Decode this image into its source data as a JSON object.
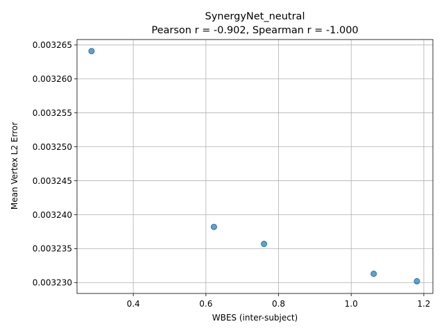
{
  "chart_data": {
    "type": "scatter",
    "title": "SynergyNet_neutral",
    "subtitle": "Pearson r = -0.902, Spearman r = -1.000",
    "xlabel": "WBES (inter-subject)",
    "ylabel": "Mean Vertex L2 Error",
    "xlim": [
      0.245,
      1.225
    ],
    "ylim": [
      0.0032284,
      0.0032658
    ],
    "xticks": [
      0.4,
      0.6,
      0.8,
      1.0,
      1.2
    ],
    "xtick_labels": [
      "0.4",
      "0.6",
      "0.8",
      "1.0",
      "1.2"
    ],
    "yticks": [
      0.00323,
      0.003235,
      0.00324,
      0.003245,
      0.00325,
      0.003255,
      0.00326,
      0.003265
    ],
    "ytick_labels": [
      "0.003230",
      "0.003235",
      "0.003240",
      "0.003245",
      "0.003250",
      "0.003255",
      "0.003260",
      "0.003265"
    ],
    "grid": true,
    "color": "#1f77b4",
    "points": [
      {
        "x": 0.285,
        "y": 0.0032641
      },
      {
        "x": 0.622,
        "y": 0.0032382
      },
      {
        "x": 0.76,
        "y": 0.0032357
      },
      {
        "x": 1.062,
        "y": 0.0032313
      },
      {
        "x": 1.181,
        "y": 0.0032302
      }
    ]
  }
}
